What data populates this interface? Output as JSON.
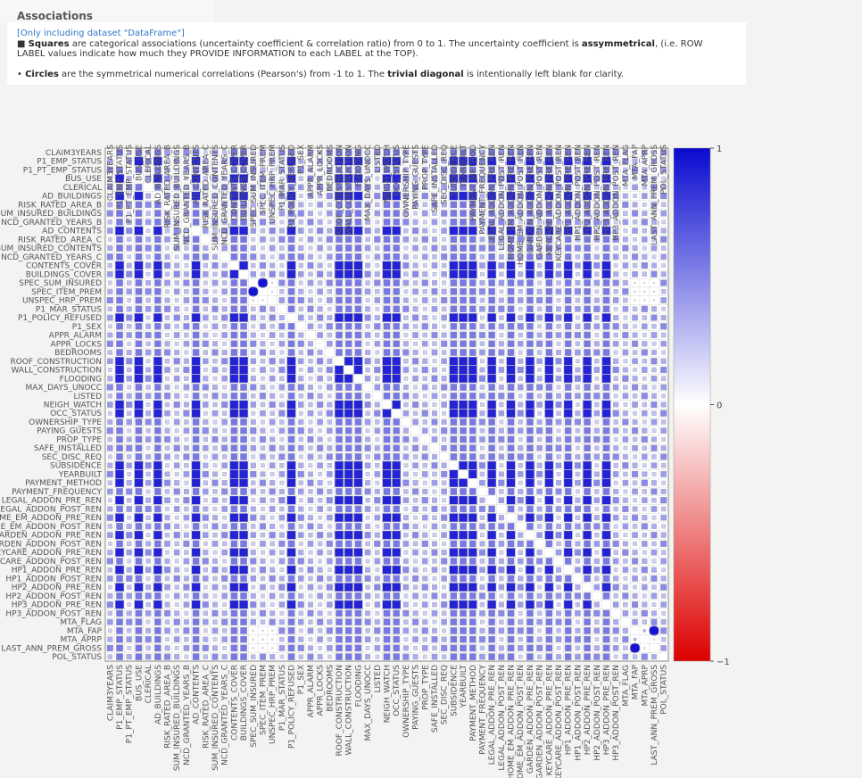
{
  "header": {
    "title": "Associations",
    "dataset_note": "[Only including dataset \"DataFrame\"]",
    "squares_lead": "Squares",
    "squares_text": " are categorical associations (uncertainty coefficient & correlation ratio) from 0 to 1. The uncertainty coefficient is ",
    "squares_bold": "assymmetrical",
    "squares_tail": ", (i.e. ROW LABEL values indicate how much they PROVIDE INFORMATION to each LABEL at the TOP).",
    "circles_lead": "Circles",
    "circles_text": " are the symmetrical numerical correlations (Pearson's) from -1 to 1. The ",
    "circles_bold": "trivial diagonal",
    "circles_tail": " is intentionally left blank for clarity."
  },
  "chart_data": {
    "type": "heatmap",
    "title": "",
    "xlabel": "",
    "ylabel": "",
    "labels": [
      "CLAIM3YEARS",
      "P1_EMP_STATUS",
      "P1_PT_EMP_STATUS",
      "BUS_USE",
      "CLERICAL",
      "AD_BUILDINGS",
      "RISK_RATED_AREA_B",
      "SUM_INSURED_BUILDINGS",
      "NCD_GRANTED_YEARS_B",
      "AD_CONTENTS",
      "RISK_RATED_AREA_C",
      "SUM_INSURED_CONTENTS",
      "NCD_GRANTED_YEARS_C",
      "CONTENTS_COVER",
      "BUILDINGS_COVER",
      "SPEC_SUM_INSURED",
      "SPEC_ITEM_PREM",
      "UNSPEC_HRP_PREM",
      "P1_MAR_STATUS",
      "P1_POLICY_REFUSED",
      "P1_SEX",
      "APPR_ALARM",
      "APPR_LOCKS",
      "BEDROOMS",
      "ROOF_CONSTRUCTION",
      "WALL_CONSTRUCTION",
      "FLOODING",
      "MAX_DAYS_UNOCC",
      "LISTED",
      "NEIGH_WATCH",
      "OCC_STATUS",
      "OWNERSHIP_TYPE",
      "PAYING_GUESTS",
      "PROP_TYPE",
      "SAFE_INSTALLED",
      "SEC_DISC_REQ",
      "SUBSIDENCE",
      "YEARBUILT",
      "PAYMENT_METHOD",
      "PAYMENT_FREQUENCY",
      "LEGAL_ADDON_PRE_REN",
      "LEGAL_ADDON_POST_REN",
      "HOME_EM_ADDON_PRE_REN",
      "HOME_EM_ADDON_POST_REN",
      "GARDEN_ADDON_PRE_REN",
      "GARDEN_ADDON_POST_REN",
      "KEYCARE_ADDON_PRE_REN",
      "KEYCARE_ADDON_POST_REN",
      "HP1_ADDON_PRE_REN",
      "HP1_ADDON_POST_REN",
      "HP2_ADDON_PRE_REN",
      "HP2_ADDON_POST_REN",
      "HP3_ADDON_PRE_REN",
      "HP3_ADDON_POST_REN",
      "MTA_FLAG",
      "MTA_FAP",
      "MTA_APRP",
      "LAST_ANN_PREM_GROSS",
      "POL_STATUS"
    ],
    "numeric_labels": [
      "SPEC_SUM_INSURED",
      "SPEC_ITEM_PREM",
      "UNSPEC_HRP_PREM",
      "MTA_FAP",
      "MTA_APRP",
      "LAST_ANN_PREM_GROSS"
    ],
    "highlighted_pairs": [
      {
        "row": "SPEC_SUM_INSURED",
        "col": "SPEC_ITEM_PREM",
        "value": 0.95
      },
      {
        "row": "SPEC_ITEM_PREM",
        "col": "SPEC_SUM_INSURED",
        "value": 0.95
      },
      {
        "row": "MTA_FAP",
        "col": "LAST_ANN_PREM_GROSS",
        "value": 0.95
      },
      {
        "row": "LAST_ANN_PREM_GROSS",
        "col": "MTA_FAP",
        "value": 0.95
      },
      {
        "row": "MTA_FAP",
        "col": "MTA_APRP",
        "value": 0.3
      },
      {
        "row": "MTA_APRP",
        "col": "MTA_FAP",
        "value": 0.3
      }
    ],
    "value_range": [
      -1,
      1
    ],
    "colorbar_ticks": [
      1,
      0,
      -1
    ],
    "colorbar_tick_labels": [
      "1",
      "0",
      "−1"
    ],
    "colorscale": [
      "#0a0ad0",
      "#ffffff",
      "#dd0000"
    ],
    "grid": true,
    "legend": "right"
  }
}
